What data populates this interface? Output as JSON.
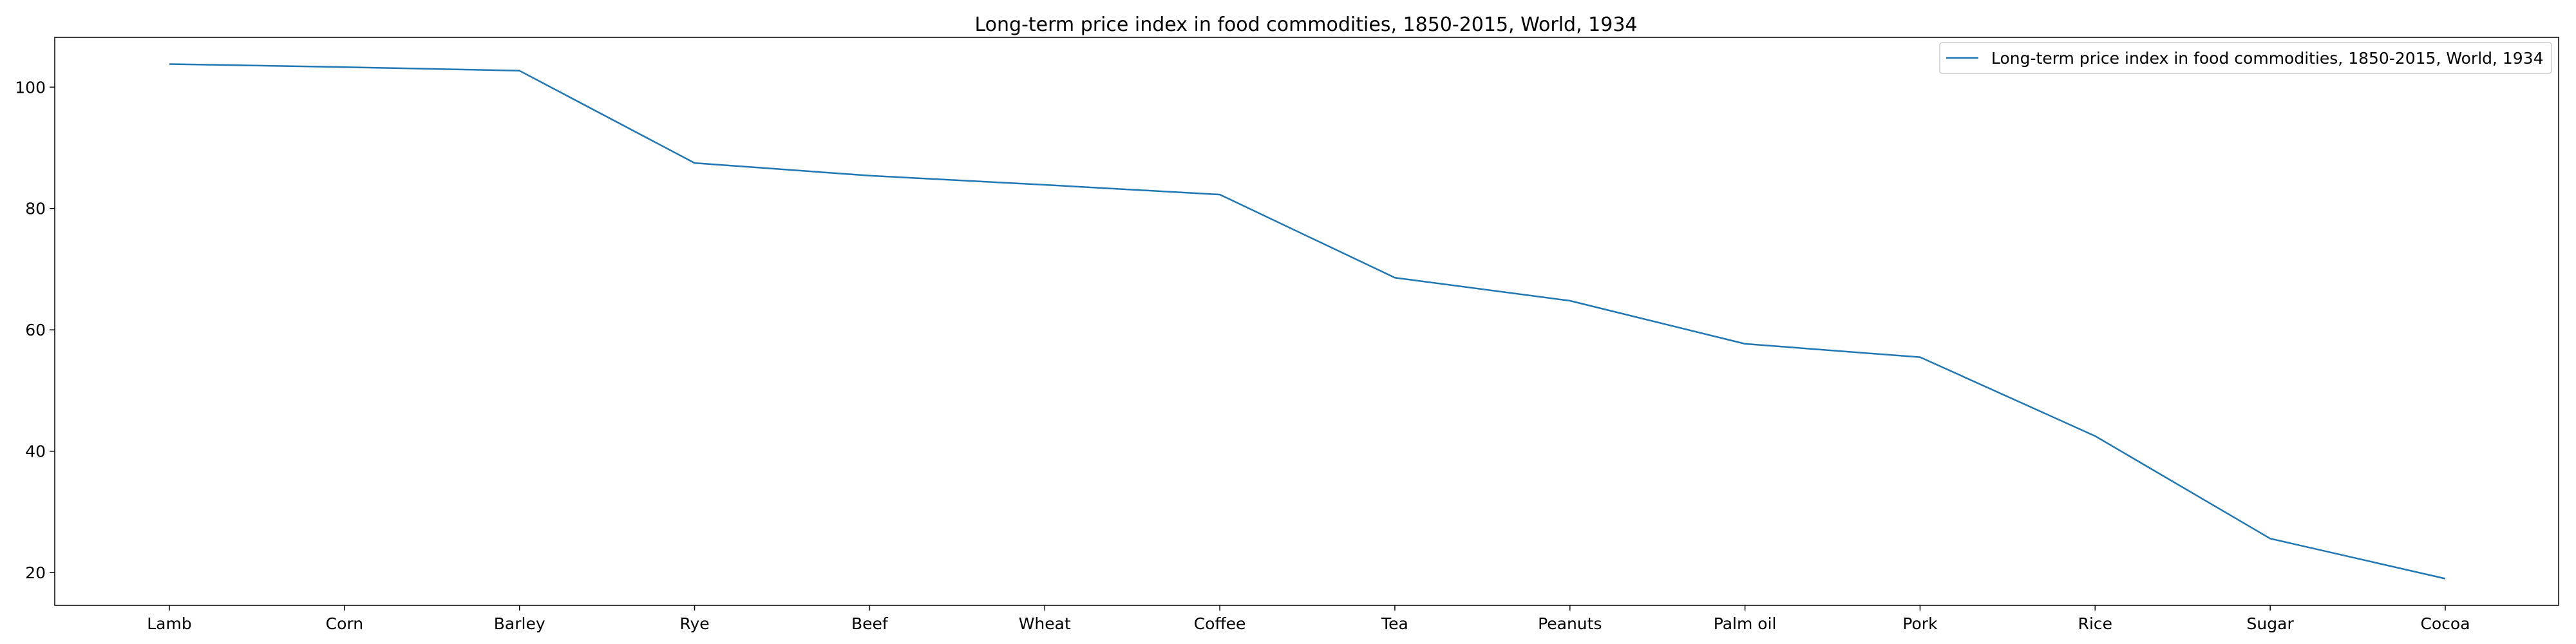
{
  "chart_data": {
    "type": "line",
    "title": "Long-term price index in food commodities, 1850-2015, World, 1934",
    "xlabel": "",
    "ylabel": "",
    "categories": [
      "Lamb",
      "Corn",
      "Barley",
      "Rye",
      "Beef",
      "Wheat",
      "Coffee",
      "Tea",
      "Peanuts",
      "Palm oil",
      "Pork",
      "Rice",
      "Sugar",
      "Cocoa"
    ],
    "series": [
      {
        "name": "Long-term price index in food commodities, 1850-2015, World, 1934",
        "values": [
          103.8,
          103.3,
          102.7,
          87.5,
          85.4,
          83.9,
          82.3,
          68.6,
          64.8,
          57.7,
          55.5,
          42.5,
          25.6,
          19.0
        ],
        "color": "#1f77b4"
      }
    ],
    "ylim": [
      14.6,
      108.2
    ],
    "yticks": [
      20,
      40,
      60,
      80,
      100
    ],
    "grid": false,
    "legend_position": "top-right"
  }
}
